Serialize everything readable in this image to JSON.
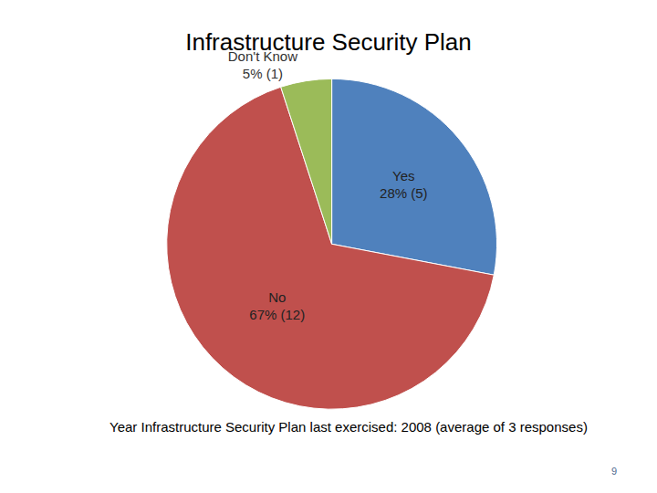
{
  "chart_data": {
    "type": "pie",
    "title": "Infrastructure Security Plan",
    "categories": [
      "Yes",
      "No",
      "Don't Know"
    ],
    "values": [
      28,
      67,
      5
    ],
    "value_labels": [
      "28% (5)",
      "67% (12)",
      "5% (1)"
    ],
    "colors": [
      "#4f81bd",
      "#c0504d",
      "#9bbb59"
    ],
    "data_labels": true,
    "annotations": [
      "Year Infrastructure Security Plan last exercised: 2008 (average of 3 responses)",
      "9"
    ]
  }
}
